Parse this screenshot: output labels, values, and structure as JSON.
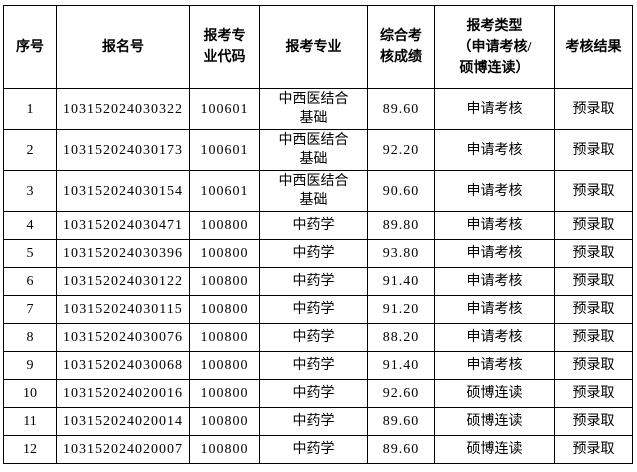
{
  "page": {
    "background_color": "#ffffff",
    "border_color": "#000000",
    "text_color": "#000000"
  },
  "table": {
    "headers": [
      "序号",
      "报名号",
      "报考专\n业代码",
      "报考专业",
      "综合考\n核成绩",
      "报考类型\n（申请考核/\n硕博连读）",
      "考核结果"
    ],
    "rows": [
      [
        "1",
        "103152024030322",
        "100601",
        "中西医结合\n基础",
        "89.60",
        "申请考核",
        "预录取"
      ],
      [
        "2",
        "103152024030173",
        "100601",
        "中西医结合\n基础",
        "92.20",
        "申请考核",
        "预录取"
      ],
      [
        "3",
        "103152024030154",
        "100601",
        "中西医结合\n基础",
        "90.60",
        "申请考核",
        "预录取"
      ],
      [
        "4",
        "103152024030471",
        "100800",
        "中药学",
        "89.80",
        "申请考核",
        "预录取"
      ],
      [
        "5",
        "103152024030396",
        "100800",
        "中药学",
        "93.80",
        "申请考核",
        "预录取"
      ],
      [
        "6",
        "103152024030122",
        "100800",
        "中药学",
        "91.40",
        "申请考核",
        "预录取"
      ],
      [
        "7",
        "103152024030115",
        "100800",
        "中药学",
        "91.20",
        "申请考核",
        "预录取"
      ],
      [
        "8",
        "103152024030076",
        "100800",
        "中药学",
        "88.20",
        "申请考核",
        "预录取"
      ],
      [
        "9",
        "103152024030068",
        "100800",
        "中药学",
        "91.40",
        "申请考核",
        "预录取"
      ],
      [
        "10",
        "103152024020016",
        "100800",
        "中药学",
        "92.60",
        "硕博连读",
        "预录取"
      ],
      [
        "11",
        "103152024020014",
        "100800",
        "中药学",
        "89.60",
        "硕博连读",
        "预录取"
      ],
      [
        "12",
        "103152024020007",
        "100800",
        "中药学",
        "89.60",
        "硕博连读",
        "预录取"
      ]
    ]
  }
}
